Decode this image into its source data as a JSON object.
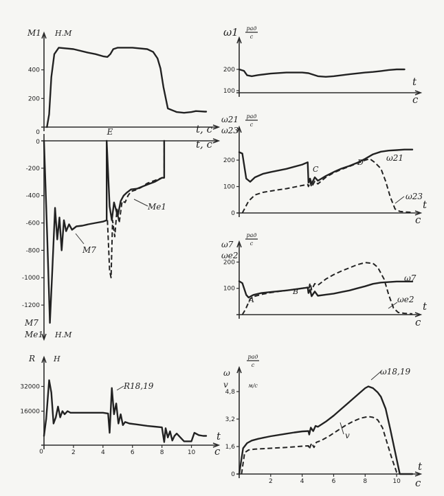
{
  "chart_data": [
    {
      "id": "m1",
      "type": "line",
      "ylabel": "M1",
      "yunit": "Н.М",
      "xlabel": "t, c",
      "xlim": [
        0,
        11
      ],
      "ylim": [
        0,
        600
      ],
      "yticks": [
        "200",
        "400"
      ],
      "series": [
        {
          "name": "M1",
          "style": "solid",
          "x": [
            0.2,
            0.35,
            0.5,
            0.7,
            1,
            2,
            3,
            3.5,
            4,
            4.3,
            4.5,
            4.7,
            5,
            6,
            7,
            7.4,
            7.7,
            7.9,
            8.1,
            8.4,
            9,
            9.5,
            10,
            10.3,
            10.6,
            10.9,
            11
          ],
          "y": [
            0,
            90,
            350,
            510,
            555,
            545,
            520,
            510,
            495,
            490,
            510,
            545,
            555,
            555,
            545,
            525,
            480,
            410,
            280,
            130,
            105,
            100,
            105,
            112,
            110,
            108,
            108
          ]
        }
      ]
    },
    {
      "id": "w1",
      "type": "line",
      "ylabel": "ω1",
      "yunit": "рад/с",
      "xlabel_t": "t",
      "xlabel_c": "c",
      "xlim": [
        0,
        11
      ],
      "ylim": [
        90,
        300
      ],
      "yticks": [
        "100",
        "200"
      ],
      "series": [
        {
          "name": "ω1",
          "style": "solid",
          "x": [
            0,
            0.3,
            0.5,
            0.8,
            1.2,
            2,
            3,
            4,
            4.4,
            5,
            5.5,
            6,
            7,
            8,
            8.5,
            9,
            9.5,
            10,
            10.5
          ],
          "y": [
            200,
            193,
            172,
            168,
            173,
            180,
            185,
            185,
            182,
            168,
            165,
            168,
            177,
            185,
            188,
            192,
            197,
            200,
            200
          ]
        }
      ]
    },
    {
      "id": "m7",
      "type": "line",
      "ylabel": "M7",
      "ylabel2": "Me1",
      "yunit": "Н.М",
      "xlabel": "t, c",
      "top_label": "E",
      "xlim": [
        0,
        11
      ],
      "ylim": [
        -1330,
        0
      ],
      "yticks": [
        "-200",
        "-400",
        "-600",
        "-800",
        "-1000",
        "-1200"
      ],
      "annotations": [
        "M7",
        "Me1"
      ],
      "series": [
        {
          "name": "M7",
          "style": "solid",
          "x": [
            0,
            0.22,
            0.4,
            0.55,
            0.75,
            0.9,
            1.05,
            1.2,
            1.35,
            1.5,
            1.7,
            1.9,
            2.2,
            2.6,
            3,
            3.5,
            4,
            4.25,
            4.25,
            4.45,
            4.6,
            4.75,
            5,
            5.2,
            5.4,
            5.6,
            5.9,
            6.3,
            7,
            7.5,
            8,
            8.15,
            8.15
          ],
          "y": [
            0,
            -700,
            -1330,
            -980,
            -490,
            -720,
            -560,
            -800,
            -580,
            -660,
            -610,
            -650,
            -625,
            -620,
            -610,
            -600,
            -590,
            -580,
            0,
            -480,
            -580,
            -450,
            -550,
            -440,
            -400,
            -380,
            -355,
            -350,
            -320,
            -300,
            -270,
            -270,
            0
          ]
        },
        {
          "name": "Me1",
          "style": "dash",
          "x": [
            4.3,
            4.45,
            4.55,
            4.65,
            4.8,
            4.95,
            5.1,
            5.3,
            5.5,
            5.7,
            5.9,
            6.2,
            6.6,
            7,
            7.5,
            8,
            8.15,
            8.15
          ],
          "y": [
            -580,
            -950,
            -1000,
            -580,
            -700,
            -500,
            -600,
            -440,
            -450,
            -400,
            -370,
            -360,
            -340,
            -310,
            -290,
            -270,
            -270,
            0
          ]
        }
      ]
    },
    {
      "id": "w21",
      "type": "line",
      "ylabel": "ω21",
      "ylabel2": "ω23",
      "yunit": "рад/с",
      "xlabel_t": "t",
      "xlabel_c": "c",
      "xlim": [
        0,
        11
      ],
      "ylim": [
        0,
        260
      ],
      "yticks": [
        "0",
        "100",
        "200"
      ],
      "point_labels": [
        "C",
        "D"
      ],
      "annotations": [
        "ω21",
        "ω23"
      ],
      "series": [
        {
          "name": "ω21",
          "style": "solid",
          "x": [
            0,
            0.2,
            0.45,
            0.7,
            1,
            1.5,
            2,
            3,
            3.5,
            4,
            4.35,
            4.4,
            4.5,
            4.6,
            4.8,
            5,
            5.5,
            6,
            6.5,
            7,
            7.5,
            8,
            8.5,
            9,
            9.5,
            10,
            10.5,
            11
          ],
          "y": [
            230,
            225,
            130,
            118,
            135,
            148,
            155,
            167,
            175,
            183,
            192,
            115,
            130,
            110,
            135,
            122,
            140,
            155,
            168,
            178,
            190,
            205,
            222,
            232,
            236,
            238,
            240,
            240
          ]
        },
        {
          "name": "ω23",
          "style": "dash",
          "x": [
            0.2,
            0.6,
            1,
            1.5,
            2,
            2.5,
            3,
            3.5,
            4,
            4.35,
            4.4,
            4.5,
            4.6,
            4.8,
            5,
            5.5,
            6,
            6.5,
            7,
            7.5,
            8,
            8.3,
            8.6,
            9,
            9.3,
            9.6,
            9.9,
            10.2,
            10.5,
            11
          ],
          "y": [
            0,
            45,
            68,
            78,
            83,
            88,
            92,
            98,
            104,
            108,
            100,
            118,
            98,
            120,
            110,
            135,
            152,
            165,
            176,
            188,
            200,
            205,
            192,
            168,
            120,
            60,
            15,
            6,
            4,
            2
          ]
        }
      ]
    },
    {
      "id": "w7",
      "type": "line",
      "ylabel": "ω7",
      "ylabel2": "ωe2",
      "yunit": "рад/с",
      "xlabel_t": "t",
      "xlabel_c": "c",
      "xlim": [
        0,
        11
      ],
      "ylim": [
        0,
        230
      ],
      "yticks": [
        "100",
        "200"
      ],
      "point_labels": [
        "A",
        "B"
      ],
      "annotations": [
        "ω7",
        "ωe2"
      ],
      "series": [
        {
          "name": "ω7",
          "style": "solid",
          "x": [
            0,
            0.2,
            0.45,
            0.6,
            0.9,
            1.4,
            2,
            3,
            3.5,
            4,
            4.35,
            4.4,
            4.5,
            4.6,
            4.8,
            5,
            5.5,
            6,
            6.5,
            7,
            7.5,
            8,
            8.5,
            9,
            9.5,
            10,
            10.5,
            11
          ],
          "y": [
            127,
            120,
            75,
            65,
            75,
            82,
            86,
            92,
            96,
            100,
            103,
            82,
            95,
            70,
            88,
            72,
            76,
            80,
            86,
            92,
            100,
            108,
            117,
            122,
            124,
            126,
            126,
            126
          ]
        },
        {
          "name": "ωe2",
          "style": "dash",
          "x": [
            0.2,
            0.4,
            0.7,
            1,
            1.5,
            2,
            2.5,
            3,
            3.5,
            4,
            4.35,
            4.4,
            4.5,
            4.6,
            4.8,
            5,
            5.5,
            6,
            6.5,
            7,
            7.5,
            8,
            8.5,
            8.8,
            9.2,
            9.5,
            9.8,
            10.1,
            10.5,
            11
          ],
          "y": [
            0,
            20,
            60,
            70,
            78,
            84,
            88,
            92,
            96,
            100,
            104,
            90,
            120,
            95,
            118,
            112,
            135,
            152,
            166,
            178,
            190,
            198,
            195,
            180,
            135,
            75,
            25,
            8,
            5,
            3
          ]
        }
      ]
    },
    {
      "id": "r1819",
      "type": "line",
      "ylabel": "R",
      "yunit": "Н",
      "xlabel_t": "t",
      "xlabel_c": "c",
      "xlim": [
        0,
        11
      ],
      "ylim": [
        -6000,
        42000
      ],
      "yticks": [
        "16000",
        "32000"
      ],
      "xticks": [
        "2",
        "4",
        "6",
        "8",
        "10"
      ],
      "annotations": [
        "R18,19"
      ],
      "series": [
        {
          "name": "R18,19",
          "style": "solid",
          "x": [
            0,
            0.15,
            0.35,
            0.5,
            0.65,
            0.8,
            0.95,
            1.1,
            1.25,
            1.4,
            1.6,
            1.8,
            2.1,
            2.5,
            3,
            3.5,
            4,
            4.35,
            4.45,
            4.6,
            4.75,
            4.9,
            5.05,
            5.2,
            5.35,
            5.5,
            5.8,
            6.2,
            7,
            7.5,
            8,
            8.15,
            8.25,
            8.4,
            8.55,
            8.7,
            8.85,
            9,
            9.5,
            10,
            10.2,
            10.5,
            10.8,
            11
          ],
          "y": [
            0,
            11000,
            36000,
            28000,
            8000,
            12000,
            19000,
            12000,
            16000,
            14000,
            16000,
            15000,
            15000,
            15000,
            15000,
            15000,
            15000,
            14500,
            2000,
            31000,
            14000,
            21000,
            8000,
            14000,
            7000,
            9000,
            8000,
            7500,
            6500,
            6000,
            5500,
            -4000,
            5000,
            -1000,
            3000,
            -3000,
            0,
            1500,
            -3500,
            -3500,
            2000,
            500,
            0,
            0
          ]
        }
      ]
    },
    {
      "id": "wv1819",
      "type": "line",
      "ylabel": "ω",
      "ylabel2": "v",
      "yunit": "рад/с",
      "yunit2": "м/с",
      "xlabel_t": "t",
      "xlabel_c": "c",
      "xlim": [
        0,
        11
      ],
      "ylim": [
        0,
        5.6
      ],
      "yticks": [
        "0",
        "1,6",
        "3,2",
        "4,8"
      ],
      "xticks": [
        "2",
        "4",
        "6",
        "8",
        "10"
      ],
      "annotations": [
        "ω18,19",
        "v"
      ],
      "series": [
        {
          "name": "ω18,19",
          "style": "solid",
          "x": [
            0,
            0.25,
            0.5,
            0.8,
            1.2,
            2,
            3,
            3.5,
            4,
            4.4,
            4.45,
            4.55,
            4.7,
            4.85,
            5,
            5.5,
            6,
            6.5,
            7,
            7.5,
            8,
            8.2,
            8.5,
            8.8,
            9,
            9.3,
            9.6,
            9.9,
            10.2,
            10.5,
            11
          ],
          "y": [
            0,
            1.5,
            1.8,
            1.95,
            2.05,
            2.2,
            2.35,
            2.42,
            2.48,
            2.5,
            2.3,
            2.7,
            2.5,
            2.8,
            2.75,
            3.05,
            3.4,
            3.8,
            4.2,
            4.6,
            5.0,
            5.1,
            5.0,
            4.75,
            4.5,
            3.8,
            2.6,
            1.3,
            0,
            0,
            0
          ]
        },
        {
          "name": "v",
          "style": "dash",
          "x": [
            0.15,
            0.35,
            0.6,
            1,
            2,
            3,
            4,
            4.4,
            4.45,
            4.6,
            4.75,
            4.9,
            5.2,
            5.7,
            6.2,
            6.7,
            7.2,
            7.7,
            8.2,
            8.5,
            8.8,
            9.1,
            9.4,
            9.7,
            10,
            10.2
          ],
          "y": [
            0,
            1.25,
            1.4,
            1.45,
            1.5,
            1.55,
            1.62,
            1.64,
            1.45,
            1.8,
            1.55,
            1.85,
            1.95,
            2.2,
            2.5,
            2.8,
            3.05,
            3.25,
            3.35,
            3.3,
            3.15,
            2.7,
            1.8,
            0.9,
            0.1,
            0
          ]
        }
      ]
    }
  ]
}
